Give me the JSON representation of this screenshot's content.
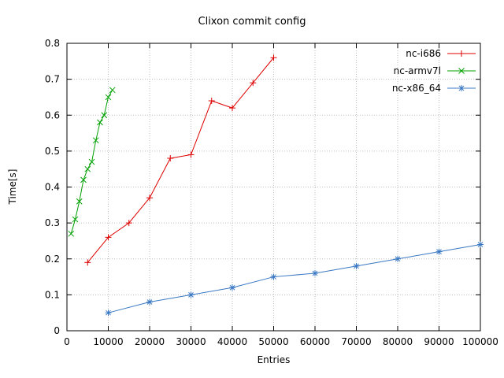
{
  "chart_data": {
    "type": "line",
    "title": "Clixon commit config",
    "xlabel": "Entries",
    "ylabel": "Time[s]",
    "xlim": [
      0,
      100000
    ],
    "ylim": [
      0,
      0.8
    ],
    "x_ticks": [
      0,
      10000,
      20000,
      30000,
      40000,
      50000,
      60000,
      70000,
      80000,
      90000,
      100000
    ],
    "y_ticks": [
      0,
      0.1,
      0.2,
      0.3,
      0.4,
      0.5,
      0.6,
      0.7,
      0.8
    ],
    "grid": true,
    "legend_position": "top-right-inside",
    "grid_color": "#bdbdbd",
    "axis_color": "#000000",
    "series": [
      {
        "name": "nc-i686",
        "color": "#dd0000",
        "marker": "plus",
        "x": [
          5000,
          10000,
          15000,
          20000,
          25000,
          30000,
          35000,
          40000,
          45000,
          50000
        ],
        "y": [
          0.19,
          0.26,
          0.3,
          0.37,
          0.48,
          0.49,
          0.64,
          0.62,
          0.69,
          0.76
        ]
      },
      {
        "name": "nc-armv7l",
        "color": "#00a000",
        "marker": "cross",
        "x": [
          1000,
          2000,
          3000,
          4000,
          5000,
          6000,
          7000,
          8000,
          9000,
          10000,
          11000
        ],
        "y": [
          0.27,
          0.31,
          0.36,
          0.42,
          0.45,
          0.47,
          0.53,
          0.58,
          0.6,
          0.65,
          0.67
        ]
      },
      {
        "name": "nc-x86_64",
        "color": "#3a78c3",
        "marker": "asterisk",
        "x": [
          10000,
          20000,
          30000,
          40000,
          50000,
          60000,
          70000,
          80000,
          90000,
          100000
        ],
        "y": [
          0.05,
          0.08,
          0.1,
          0.12,
          0.15,
          0.16,
          0.18,
          0.2,
          0.22,
          0.24
        ]
      }
    ]
  }
}
